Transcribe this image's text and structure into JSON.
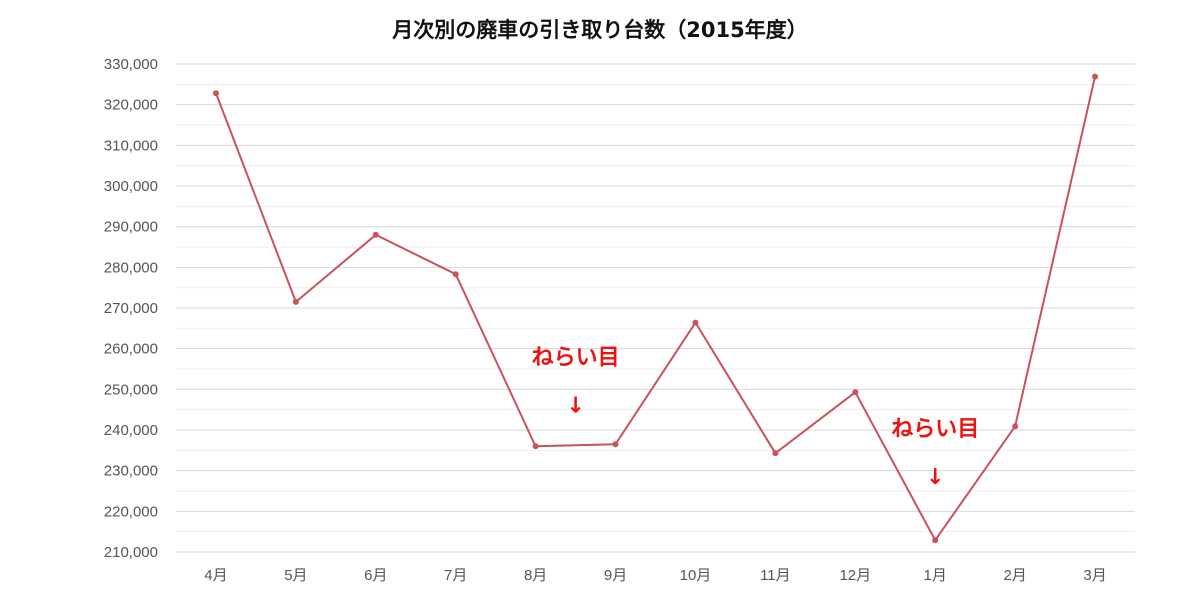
{
  "chart_data": {
    "type": "line",
    "title": "月次別の廃車の引き取り台数（2015年度）",
    "xlabel": "",
    "ylabel": "",
    "categories": [
      "4月",
      "5月",
      "6月",
      "7月",
      "8月",
      "9月",
      "10月",
      "11月",
      "12月",
      "1月",
      "2月",
      "3月"
    ],
    "series": [
      {
        "values": [
          322800,
          271500,
          288000,
          278300,
          236000,
          236500,
          266400,
          234300,
          249300,
          212900,
          240900,
          326900
        ]
      }
    ],
    "ylim": [
      210000,
      330000
    ],
    "yticks": [
      210000,
      220000,
      230000,
      240000,
      250000,
      260000,
      270000,
      280000,
      290000,
      300000,
      310000,
      320000,
      330000
    ],
    "ytick_labels": [
      "210,000",
      "220,000",
      "230,000",
      "240,000",
      "250,000",
      "260,000",
      "270,000",
      "280,000",
      "290,000",
      "300,000",
      "310,000",
      "320,000",
      "330,000"
    ],
    "grid": true,
    "legend": "none",
    "annotations": [
      {
        "text": "ねらい目",
        "arrow": "↓",
        "between": [
          "8月",
          "9月"
        ]
      },
      {
        "text": "ねらい目",
        "arrow": "↓",
        "at": "1月"
      }
    ]
  },
  "colors": {
    "line": "#c9525f",
    "annotation": "#ee1111",
    "grid": "#d9d9d9",
    "minor_grid": "#eeeeee",
    "tick_text": "#555555"
  }
}
